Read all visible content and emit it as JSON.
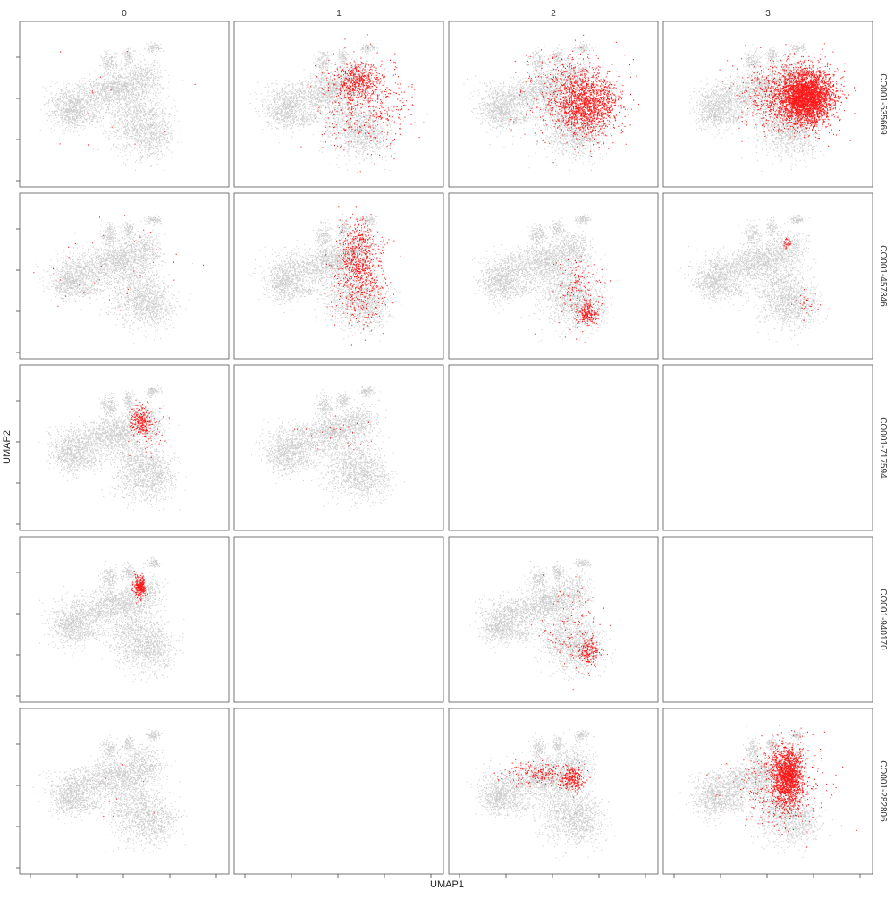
{
  "chart_data": {
    "type": "scatter",
    "xlabel": "UMAP1",
    "ylabel": "UMAP2",
    "facet_columns": [
      "0",
      "1",
      "2",
      "3"
    ],
    "facet_rows": [
      "CO001-535669",
      "CO001-457346",
      "CO001-717594",
      "CO001-940170",
      "CO001-282806"
    ],
    "background_color": "#c0c0c0",
    "highlight_color": "#ff0000",
    "x_ticks": 5,
    "y_ticks": 4,
    "grid": false,
    "legend": "none",
    "panels": [
      {
        "row": 0,
        "col": 0,
        "present": true,
        "highlight": [
          {
            "x": 0.45,
            "y": 0.55,
            "sx": 0.25,
            "sy": 0.2,
            "n": 18
          }
        ]
      },
      {
        "row": 0,
        "col": 1,
        "present": true,
        "highlight": [
          {
            "x": 0.6,
            "y": 0.65,
            "sx": 0.06,
            "sy": 0.06,
            "n": 400
          },
          {
            "x": 0.65,
            "y": 0.5,
            "sx": 0.12,
            "sy": 0.15,
            "n": 500
          }
        ]
      },
      {
        "row": 0,
        "col": 2,
        "present": true,
        "highlight": [
          {
            "x": 0.68,
            "y": 0.5,
            "sx": 0.08,
            "sy": 0.1,
            "n": 1200
          },
          {
            "x": 0.6,
            "y": 0.55,
            "sx": 0.12,
            "sy": 0.15,
            "n": 600
          }
        ]
      },
      {
        "row": 0,
        "col": 3,
        "present": true,
        "highlight": [
          {
            "x": 0.7,
            "y": 0.55,
            "sx": 0.07,
            "sy": 0.09,
            "n": 3000
          },
          {
            "x": 0.6,
            "y": 0.55,
            "sx": 0.12,
            "sy": 0.12,
            "n": 800
          }
        ]
      },
      {
        "row": 1,
        "col": 0,
        "present": true,
        "highlight": [
          {
            "x": 0.45,
            "y": 0.55,
            "sx": 0.2,
            "sy": 0.18,
            "n": 45
          }
        ]
      },
      {
        "row": 1,
        "col": 1,
        "present": true,
        "highlight": [
          {
            "x": 0.6,
            "y": 0.65,
            "sx": 0.05,
            "sy": 0.12,
            "n": 500
          },
          {
            "x": 0.62,
            "y": 0.45,
            "sx": 0.07,
            "sy": 0.15,
            "n": 350
          }
        ]
      },
      {
        "row": 1,
        "col": 2,
        "present": true,
        "highlight": [
          {
            "x": 0.68,
            "y": 0.25,
            "sx": 0.03,
            "sy": 0.04,
            "n": 200
          },
          {
            "x": 0.63,
            "y": 0.4,
            "sx": 0.06,
            "sy": 0.12,
            "n": 150
          }
        ]
      },
      {
        "row": 1,
        "col": 3,
        "present": true,
        "highlight": [
          {
            "x": 0.6,
            "y": 0.72,
            "sx": 0.01,
            "sy": 0.02,
            "n": 30
          },
          {
            "x": 0.7,
            "y": 0.3,
            "sx": 0.03,
            "sy": 0.05,
            "n": 25
          }
        ]
      },
      {
        "row": 2,
        "col": 0,
        "present": true,
        "highlight": [
          {
            "x": 0.58,
            "y": 0.68,
            "sx": 0.025,
            "sy": 0.05,
            "n": 220
          },
          {
            "x": 0.63,
            "y": 0.6,
            "sx": 0.05,
            "sy": 0.08,
            "n": 60
          }
        ]
      },
      {
        "row": 2,
        "col": 1,
        "present": true,
        "highlight": [
          {
            "x": 0.48,
            "y": 0.6,
            "sx": 0.12,
            "sy": 0.08,
            "n": 30
          }
        ]
      },
      {
        "row": 2,
        "col": 2,
        "present": false,
        "highlight": []
      },
      {
        "row": 2,
        "col": 3,
        "present": false,
        "highlight": []
      },
      {
        "row": 3,
        "col": 0,
        "present": true,
        "highlight": [
          {
            "x": 0.58,
            "y": 0.72,
            "sx": 0.015,
            "sy": 0.04,
            "n": 260
          }
        ]
      },
      {
        "row": 3,
        "col": 1,
        "present": false,
        "highlight": []
      },
      {
        "row": 3,
        "col": 2,
        "present": true,
        "highlight": [
          {
            "x": 0.68,
            "y": 0.28,
            "sx": 0.03,
            "sy": 0.05,
            "n": 180
          },
          {
            "x": 0.6,
            "y": 0.45,
            "sx": 0.08,
            "sy": 0.15,
            "n": 120
          }
        ]
      },
      {
        "row": 3,
        "col": 3,
        "present": false,
        "highlight": []
      },
      {
        "row": 4,
        "col": 0,
        "present": true,
        "highlight": [
          {
            "x": 0.55,
            "y": 0.5,
            "sx": 0.1,
            "sy": 0.1,
            "n": 8
          }
        ]
      },
      {
        "row": 4,
        "col": 1,
        "present": false,
        "highlight": []
      },
      {
        "row": 4,
        "col": 2,
        "present": true,
        "highlight": [
          {
            "x": 0.6,
            "y": 0.58,
            "sx": 0.03,
            "sy": 0.04,
            "n": 250
          },
          {
            "x": 0.42,
            "y": 0.62,
            "sx": 0.1,
            "sy": 0.04,
            "n": 200
          }
        ]
      },
      {
        "row": 4,
        "col": 3,
        "present": true,
        "highlight": [
          {
            "x": 0.6,
            "y": 0.6,
            "sx": 0.04,
            "sy": 0.1,
            "n": 1500
          },
          {
            "x": 0.55,
            "y": 0.55,
            "sx": 0.12,
            "sy": 0.15,
            "n": 400
          }
        ]
      }
    ]
  }
}
